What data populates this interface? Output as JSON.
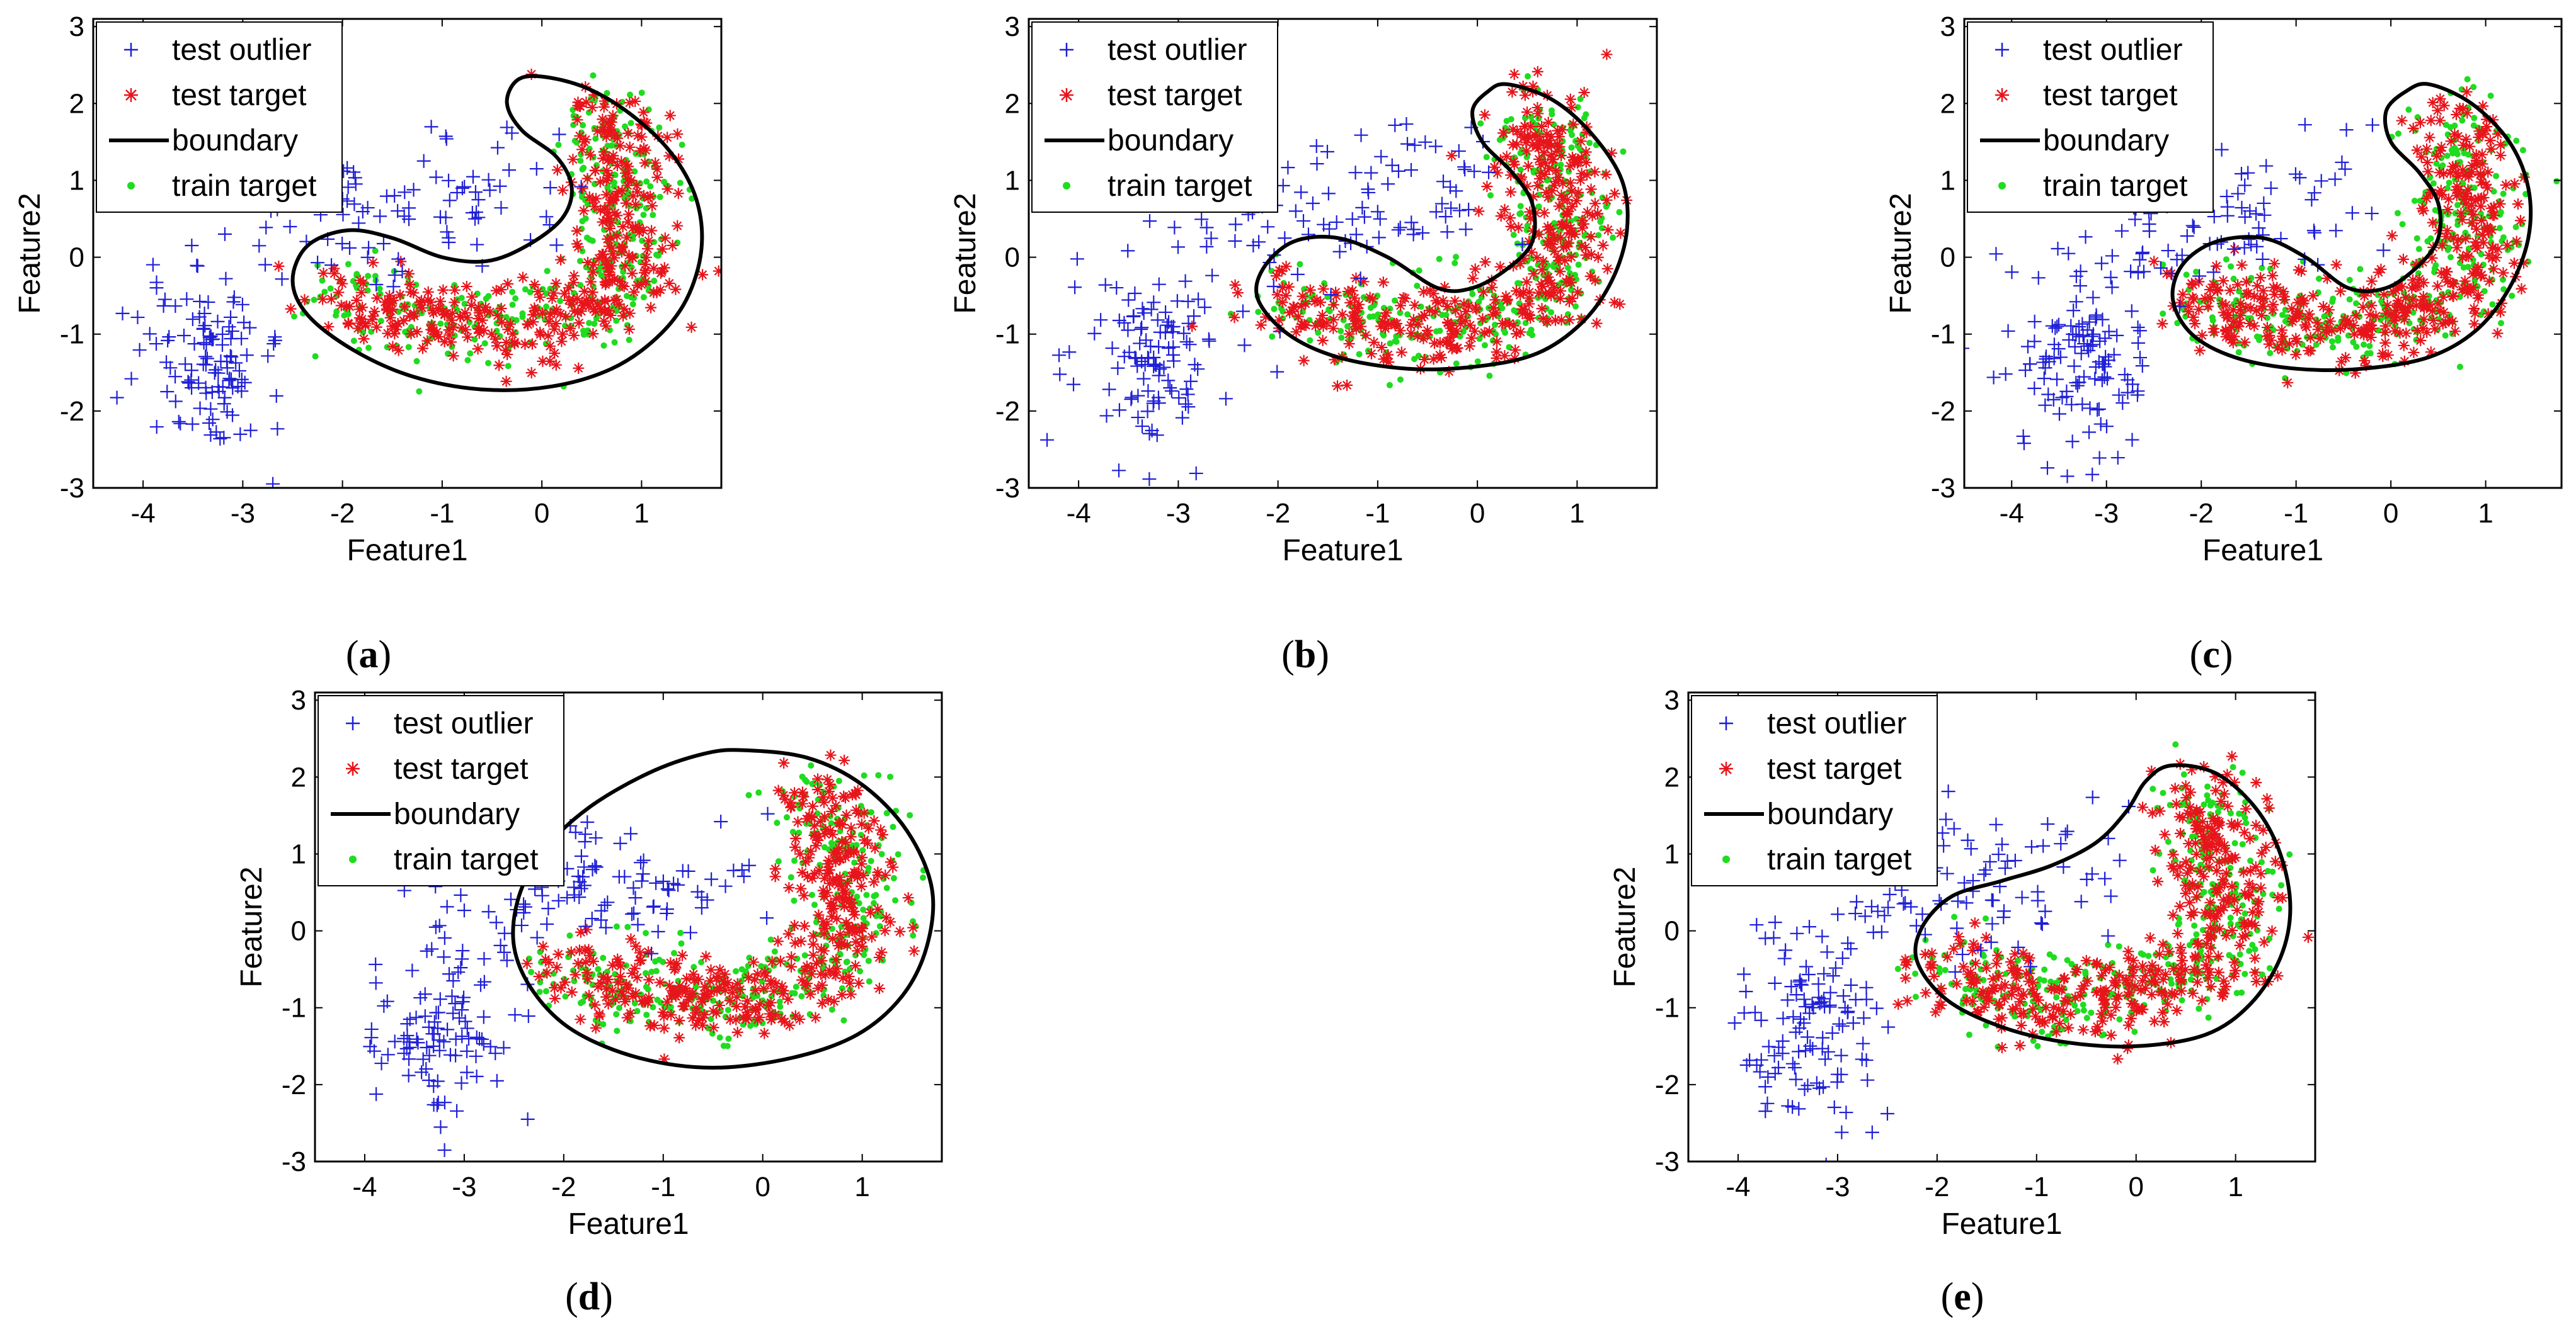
{
  "chart_data": [
    {
      "type": "scatter",
      "panel_id": "a",
      "panel_label": "(a)",
      "xlabel": "Feature1",
      "ylabel": "Feature2",
      "xlim": [
        -4.5,
        1.8
      ],
      "ylim": [
        -3,
        3.1
      ],
      "xticks": [
        -4,
        -3,
        -2,
        -1,
        0,
        1
      ],
      "yticks": [
        -3,
        -2,
        -1,
        0,
        1,
        2,
        3
      ],
      "grid": false,
      "legend_position": "top-left",
      "legend": [
        "test outlier",
        "test target",
        "boundary",
        "train target"
      ],
      "boundary": [
        [
          0.0,
          2.35
        ],
        [
          0.45,
          2.2
        ],
        [
          0.9,
          1.85
        ],
        [
          1.3,
          1.35
        ],
        [
          1.55,
          0.75
        ],
        [
          1.6,
          0.1
        ],
        [
          1.45,
          -0.55
        ],
        [
          1.15,
          -1.05
        ],
        [
          0.7,
          -1.45
        ],
        [
          0.1,
          -1.68
        ],
        [
          -0.6,
          -1.72
        ],
        [
          -1.3,
          -1.55
        ],
        [
          -1.9,
          -1.2
        ],
        [
          -2.35,
          -0.75
        ],
        [
          -2.5,
          -0.3
        ],
        [
          -2.35,
          0.15
        ],
        [
          -1.95,
          0.35
        ],
        [
          -1.5,
          0.25
        ],
        [
          -1.0,
          0.0
        ],
        [
          -0.55,
          -0.05
        ],
        [
          -0.15,
          0.15
        ],
        [
          0.2,
          0.5
        ],
        [
          0.3,
          0.9
        ],
        [
          0.15,
          1.3
        ],
        [
          -0.2,
          1.65
        ],
        [
          -0.35,
          2.0
        ],
        [
          -0.25,
          2.3
        ],
        [
          0.0,
          2.35
        ]
      ]
    },
    {
      "type": "scatter",
      "panel_id": "b",
      "panel_label": "(b)",
      "xlabel": "Feature1",
      "ylabel": "Feature2",
      "xlim": [
        -4.5,
        1.8
      ],
      "ylim": [
        -3,
        3.1
      ],
      "xticks": [
        -4,
        -3,
        -2,
        -1,
        0,
        1
      ],
      "yticks": [
        -3,
        -2,
        -1,
        0,
        1,
        2,
        3
      ],
      "grid": false,
      "legend_position": "top-left",
      "legend": [
        "test outlier",
        "test target",
        "boundary",
        "train target"
      ],
      "boundary": [
        [
          0.3,
          2.25
        ],
        [
          0.75,
          2.05
        ],
        [
          1.15,
          1.6
        ],
        [
          1.45,
          1.0
        ],
        [
          1.5,
          0.35
        ],
        [
          1.35,
          -0.3
        ],
        [
          1.05,
          -0.85
        ],
        [
          0.6,
          -1.25
        ],
        [
          0.0,
          -1.42
        ],
        [
          -0.7,
          -1.45
        ],
        [
          -1.4,
          -1.3
        ],
        [
          -1.9,
          -1.0
        ],
        [
          -2.2,
          -0.55
        ],
        [
          -2.15,
          -0.15
        ],
        [
          -1.85,
          0.2
        ],
        [
          -1.4,
          0.25
        ],
        [
          -0.9,
          0.0
        ],
        [
          -0.4,
          -0.4
        ],
        [
          -0.05,
          -0.4
        ],
        [
          0.3,
          -0.15
        ],
        [
          0.55,
          0.2
        ],
        [
          0.55,
          0.7
        ],
        [
          0.35,
          1.1
        ],
        [
          0.05,
          1.5
        ],
        [
          -0.05,
          1.9
        ],
        [
          0.1,
          2.15
        ],
        [
          0.3,
          2.25
        ]
      ]
    },
    {
      "type": "scatter",
      "panel_id": "c",
      "panel_label": "(c)",
      "xlabel": "Feature1",
      "ylabel": "Feature2",
      "xlim": [
        -4.5,
        1.8
      ],
      "ylim": [
        -3,
        3.1
      ],
      "xticks": [
        -4,
        -3,
        -2,
        -1,
        0,
        1
      ],
      "yticks": [
        -3,
        -2,
        -1,
        0,
        1,
        2,
        3
      ],
      "grid": false,
      "legend_position": "top-left",
      "legend": [
        "test outlier",
        "test target",
        "boundary",
        "train target"
      ],
      "boundary": [
        [
          0.4,
          2.25
        ],
        [
          0.85,
          2.0
        ],
        [
          1.25,
          1.5
        ],
        [
          1.45,
          0.9
        ],
        [
          1.45,
          0.25
        ],
        [
          1.25,
          -0.4
        ],
        [
          0.9,
          -0.95
        ],
        [
          0.4,
          -1.3
        ],
        [
          -0.3,
          -1.45
        ],
        [
          -1.0,
          -1.45
        ],
        [
          -1.65,
          -1.3
        ],
        [
          -2.1,
          -1.0
        ],
        [
          -2.3,
          -0.55
        ],
        [
          -2.2,
          -0.1
        ],
        [
          -1.85,
          0.2
        ],
        [
          -1.35,
          0.25
        ],
        [
          -0.9,
          0.0
        ],
        [
          -0.45,
          -0.4
        ],
        [
          -0.05,
          -0.4
        ],
        [
          0.3,
          -0.1
        ],
        [
          0.5,
          0.25
        ],
        [
          0.5,
          0.7
        ],
        [
          0.3,
          1.1
        ],
        [
          0.0,
          1.5
        ],
        [
          -0.05,
          1.9
        ],
        [
          0.15,
          2.15
        ],
        [
          0.4,
          2.25
        ]
      ]
    },
    {
      "type": "scatter",
      "panel_id": "d",
      "panel_label": "(d)",
      "xlabel": "Feature1",
      "ylabel": "Feature2",
      "xlim": [
        -4.5,
        1.8
      ],
      "ylim": [
        -3,
        3.1
      ],
      "xticks": [
        -4,
        -3,
        -2,
        -1,
        0,
        1
      ],
      "yticks": [
        -3,
        -2,
        -1,
        0,
        1,
        2,
        3
      ],
      "grid": false,
      "legend_position": "top-left",
      "legend": [
        "test outlier",
        "test target",
        "boundary",
        "train target"
      ],
      "boundary": [
        [
          -0.2,
          2.35
        ],
        [
          0.45,
          2.25
        ],
        [
          1.0,
          1.9
        ],
        [
          1.45,
          1.3
        ],
        [
          1.7,
          0.55
        ],
        [
          1.65,
          -0.2
        ],
        [
          1.4,
          -0.85
        ],
        [
          0.95,
          -1.35
        ],
        [
          0.3,
          -1.65
        ],
        [
          -0.5,
          -1.78
        ],
        [
          -1.25,
          -1.65
        ],
        [
          -1.9,
          -1.3
        ],
        [
          -2.3,
          -0.8
        ],
        [
          -2.5,
          -0.2
        ],
        [
          -2.45,
          0.45
        ],
        [
          -2.2,
          1.05
        ],
        [
          -1.75,
          1.6
        ],
        [
          -1.15,
          2.05
        ],
        [
          -0.6,
          2.3
        ],
        [
          -0.2,
          2.35
        ]
      ]
    },
    {
      "type": "scatter",
      "panel_id": "e",
      "panel_label": "(e)",
      "xlabel": "Feature1",
      "ylabel": "Feature2",
      "xlim": [
        -4.5,
        1.8
      ],
      "ylim": [
        -3,
        3.1
      ],
      "xticks": [
        -4,
        -3,
        -2,
        -1,
        0,
        1
      ],
      "yticks": [
        -3,
        -2,
        -1,
        0,
        1,
        2,
        3
      ],
      "grid": false,
      "legend_position": "top-left",
      "legend": [
        "test outlier",
        "test target",
        "boundary",
        "train target"
      ],
      "boundary": [
        [
          0.35,
          2.15
        ],
        [
          0.8,
          2.05
        ],
        [
          1.2,
          1.6
        ],
        [
          1.45,
          1.0
        ],
        [
          1.55,
          0.3
        ],
        [
          1.45,
          -0.35
        ],
        [
          1.15,
          -0.95
        ],
        [
          0.7,
          -1.35
        ],
        [
          0.0,
          -1.5
        ],
        [
          -0.7,
          -1.45
        ],
        [
          -1.35,
          -1.25
        ],
        [
          -1.9,
          -0.9
        ],
        [
          -2.2,
          -0.4
        ],
        [
          -2.15,
          0.05
        ],
        [
          -1.85,
          0.45
        ],
        [
          -1.35,
          0.65
        ],
        [
          -0.85,
          0.85
        ],
        [
          -0.4,
          1.15
        ],
        [
          -0.1,
          1.55
        ],
        [
          0.1,
          1.95
        ],
        [
          0.35,
          2.15
        ]
      ]
    }
  ],
  "series_style": {
    "test_outlier": {
      "marker": "+",
      "color": "#1f1fd6"
    },
    "test_target": {
      "marker": "*",
      "color": "#e8141b"
    },
    "boundary": {
      "marker": "line",
      "color": "#000000"
    },
    "train_target": {
      "marker": "dot",
      "color": "#1fdc1f"
    }
  }
}
